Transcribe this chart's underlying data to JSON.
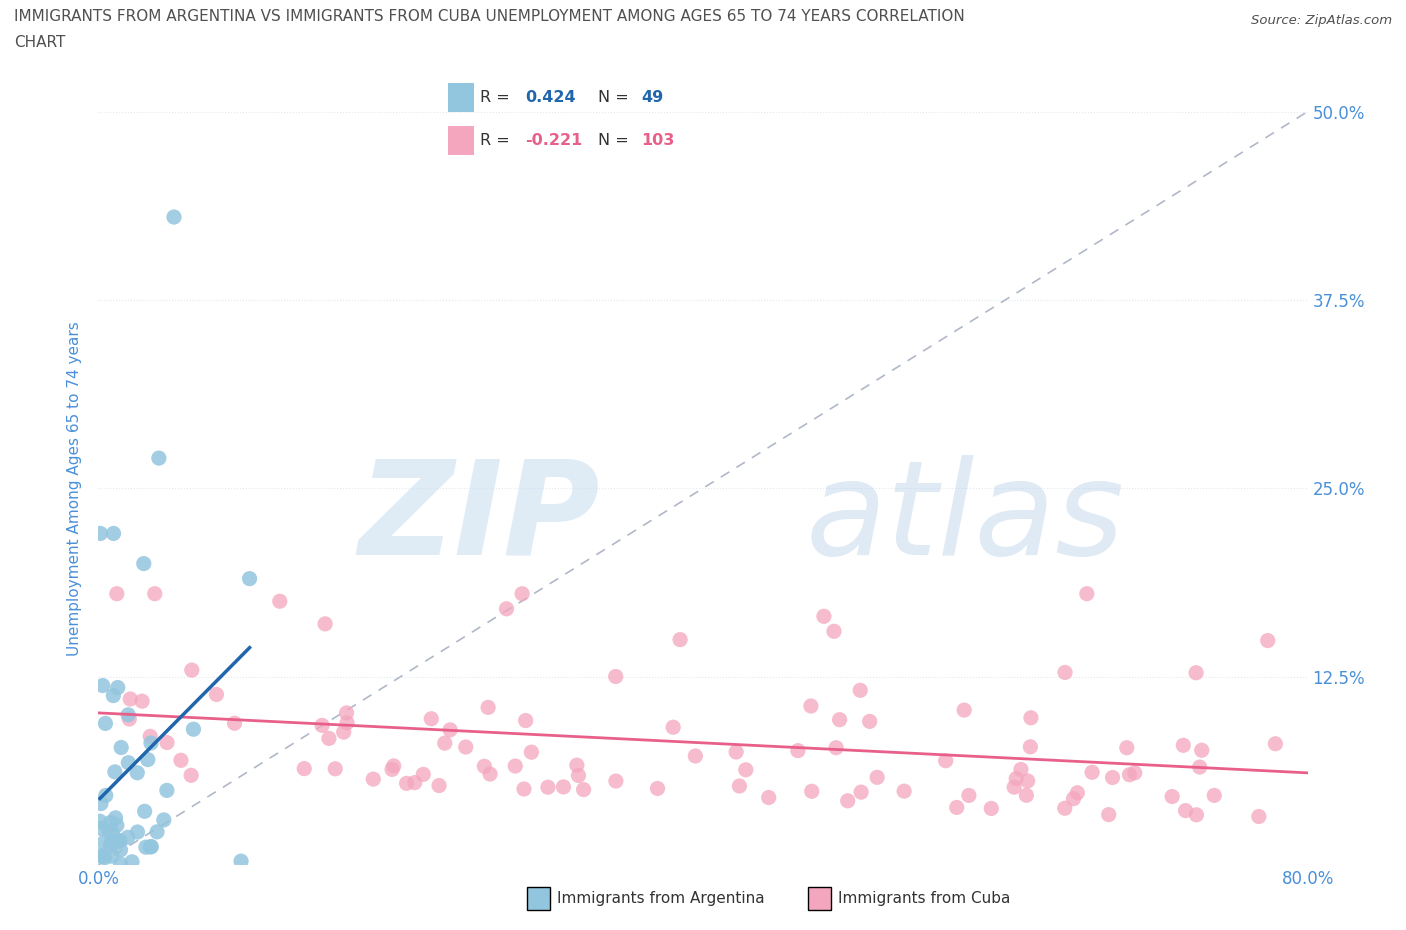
{
  "title_line1": "IMMIGRANTS FROM ARGENTINA VS IMMIGRANTS FROM CUBA UNEMPLOYMENT AMONG AGES 65 TO 74 YEARS CORRELATION",
  "title_line2": "CHART",
  "source": "Source: ZipAtlas.com",
  "ylabel": "Unemployment Among Ages 65 to 74 years",
  "legend_label_1": "Immigrants from Argentina",
  "legend_label_2": "Immigrants from Cuba",
  "r1": 0.424,
  "n1": 49,
  "r2": -0.221,
  "n2": 103,
  "color_argentina": "#92c5de",
  "color_cuba": "#f4a6be",
  "line_color_argentina": "#2166ac",
  "line_color_cuba": "#e8608a",
  "dashed_line_color": "#b0b8c8",
  "xlim": [
    0.0,
    0.8
  ],
  "ylim": [
    0.0,
    0.5
  ],
  "xticks": [
    0.0,
    0.2,
    0.4,
    0.6,
    0.8
  ],
  "yticks": [
    0.0,
    0.125,
    0.25,
    0.375,
    0.5
  ],
  "xtick_labels": [
    "0.0%",
    "",
    "",
    "",
    "80.0%"
  ],
  "ytick_labels_right": [
    "",
    "12.5%",
    "25.0%",
    "37.5%",
    "50.0%"
  ],
  "background_color": "#ffffff",
  "grid_color": "#e0e8f0",
  "title_color": "#505050",
  "axis_label_color": "#4a90d9"
}
